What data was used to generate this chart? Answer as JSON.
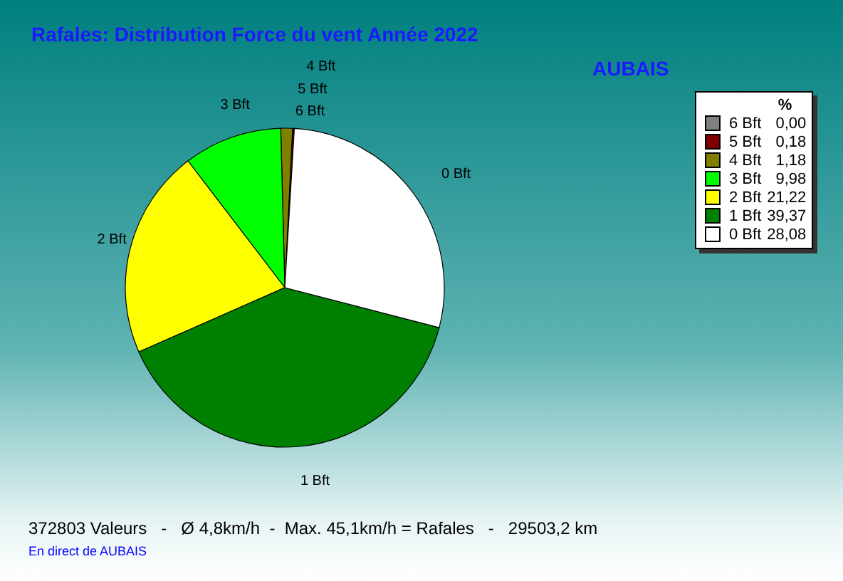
{
  "chart_data": {
    "type": "pie",
    "title": "Rafales: Distribution Force du vent  Année 2022",
    "subtitle": "AUBAIS",
    "legend_title": "%",
    "categories": [
      "6 Bft",
      "5 Bft",
      "4 Bft",
      "3 Bft",
      "2 Bft",
      "1 Bft",
      "0 Bft"
    ],
    "values": [
      0.0,
      0.18,
      1.18,
      9.98,
      21.22,
      39.37,
      28.08
    ],
    "value_labels": [
      "0,00",
      "0,18",
      "1,18",
      "9,98",
      "21,22",
      "39,37",
      "28,08"
    ],
    "colors": [
      "#808080",
      "#800000",
      "#808000",
      "#00ff00",
      "#ffff00",
      "#008000",
      "#ffffff"
    ],
    "legend": "right",
    "annotations": [
      "372803 Valeurs   -   Ø 4,8km/h  -  Max. 45,1km/h = Rafales   -   29503,2 km",
      "En direct de AUBAIS"
    ]
  }
}
